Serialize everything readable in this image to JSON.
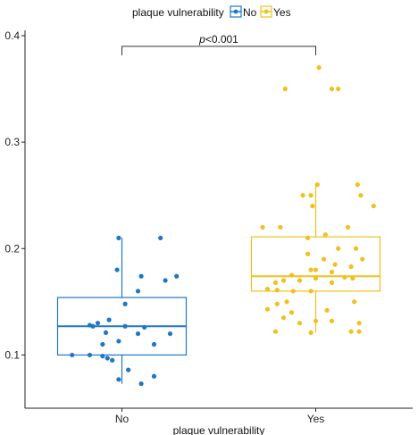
{
  "chart_data": {
    "type": "box-jitter",
    "legend": {
      "title": "plaque vulnerability",
      "position": "top",
      "entries": [
        {
          "label": "No",
          "color": "#1f77c4"
        },
        {
          "label": "Yes",
          "color": "#f2c01e"
        }
      ]
    },
    "xlabel": "plaque vulnerability",
    "ylabel": "",
    "categories": [
      "No",
      "Yes"
    ],
    "ylim": [
      0.05,
      0.405
    ],
    "yticks": [
      {
        "value": 0.1,
        "label": "0.1"
      },
      {
        "value": 0.2,
        "label": "0.2"
      },
      {
        "value": 0.3,
        "label": "0.3"
      },
      {
        "value": 0.4,
        "label": "0.4"
      }
    ],
    "annotation": {
      "italic": "p",
      "rest": "<0.001",
      "between": [
        "No",
        "Yes"
      ],
      "y": 0.39
    },
    "grid": false,
    "series": [
      {
        "name": "No",
        "color": "#1f77c4",
        "box": {
          "q1": 0.1,
          "median": 0.127,
          "q3": 0.154,
          "whisker_low": 0.073,
          "whisker_high": 0.21
        },
        "points": [
          {
            "jitter": -0.02,
            "y": 0.21
          },
          {
            "jitter": 0.24,
            "y": 0.21
          },
          {
            "jitter": -0.03,
            "y": 0.18
          },
          {
            "jitter": 0.12,
            "y": 0.174
          },
          {
            "jitter": 0.34,
            "y": 0.174
          },
          {
            "jitter": 0.27,
            "y": 0.17
          },
          {
            "jitter": 0.1,
            "y": 0.16
          },
          {
            "jitter": 0.02,
            "y": 0.148
          },
          {
            "jitter": -0.08,
            "y": 0.133
          },
          {
            "jitter": -0.15,
            "y": 0.13
          },
          {
            "jitter": -0.2,
            "y": 0.128
          },
          {
            "jitter": -0.18,
            "y": 0.127
          },
          {
            "jitter": 0.02,
            "y": 0.127
          },
          {
            "jitter": 0.14,
            "y": 0.126
          },
          {
            "jitter": -0.1,
            "y": 0.121
          },
          {
            "jitter": 0.1,
            "y": 0.12
          },
          {
            "jitter": 0.3,
            "y": 0.12
          },
          {
            "jitter": -0.02,
            "y": 0.113
          },
          {
            "jitter": -0.12,
            "y": 0.11
          },
          {
            "jitter": 0.2,
            "y": 0.11
          },
          {
            "jitter": -0.31,
            "y": 0.1
          },
          {
            "jitter": -0.2,
            "y": 0.1
          },
          {
            "jitter": -0.12,
            "y": 0.099
          },
          {
            "jitter": -0.09,
            "y": 0.097
          },
          {
            "jitter": -0.06,
            "y": 0.095
          },
          {
            "jitter": 0.04,
            "y": 0.086
          },
          {
            "jitter": 0.2,
            "y": 0.08
          },
          {
            "jitter": -0.02,
            "y": 0.077
          },
          {
            "jitter": 0.12,
            "y": 0.073
          }
        ]
      },
      {
        "name": "Yes",
        "color": "#f2c01e",
        "box": {
          "q1": 0.16,
          "median": 0.174,
          "q3": 0.211,
          "whisker_low": 0.121,
          "whisker_high": 0.26
        },
        "points": [
          {
            "jitter": 0.02,
            "y": 0.37
          },
          {
            "jitter": -0.19,
            "y": 0.35
          },
          {
            "jitter": 0.1,
            "y": 0.35
          },
          {
            "jitter": 0.14,
            "y": 0.35
          },
          {
            "jitter": 0.26,
            "y": 0.26
          },
          {
            "jitter": 0.01,
            "y": 0.26
          },
          {
            "jitter": -0.08,
            "y": 0.25
          },
          {
            "jitter": -0.03,
            "y": 0.25
          },
          {
            "jitter": 0.28,
            "y": 0.25
          },
          {
            "jitter": 0.36,
            "y": 0.24
          },
          {
            "jitter": -0.02,
            "y": 0.24
          },
          {
            "jitter": 0.2,
            "y": 0.22
          },
          {
            "jitter": -0.33,
            "y": 0.22
          },
          {
            "jitter": -0.22,
            "y": 0.22
          },
          {
            "jitter": 0.06,
            "y": 0.213
          },
          {
            "jitter": -0.05,
            "y": 0.21
          },
          {
            "jitter": 0.14,
            "y": 0.2
          },
          {
            "jitter": 0.25,
            "y": 0.2
          },
          {
            "jitter": -0.05,
            "y": 0.195
          },
          {
            "jitter": 0.05,
            "y": 0.19
          },
          {
            "jitter": 0.29,
            "y": 0.19
          },
          {
            "jitter": 0.12,
            "y": 0.185
          },
          {
            "jitter": 0.22,
            "y": 0.183
          },
          {
            "jitter": -0.03,
            "y": 0.18
          },
          {
            "jitter": 0.0,
            "y": 0.18
          },
          {
            "jitter": 0.1,
            "y": 0.178
          },
          {
            "jitter": -0.15,
            "y": 0.175
          },
          {
            "jitter": 0.18,
            "y": 0.173
          },
          {
            "jitter": -0.2,
            "y": 0.17
          },
          {
            "jitter": -0.1,
            "y": 0.17
          },
          {
            "jitter": 0.0,
            "y": 0.172
          },
          {
            "jitter": 0.23,
            "y": 0.172
          },
          {
            "jitter": -0.25,
            "y": 0.168
          },
          {
            "jitter": 0.1,
            "y": 0.168
          },
          {
            "jitter": -0.3,
            "y": 0.162
          },
          {
            "jitter": -0.24,
            "y": 0.161
          },
          {
            "jitter": -0.14,
            "y": 0.16
          },
          {
            "jitter": -0.03,
            "y": 0.16
          },
          {
            "jitter": -0.18,
            "y": 0.15
          },
          {
            "jitter": 0.24,
            "y": 0.15
          },
          {
            "jitter": -0.24,
            "y": 0.148
          },
          {
            "jitter": -0.3,
            "y": 0.143
          },
          {
            "jitter": 0.07,
            "y": 0.142
          },
          {
            "jitter": -0.15,
            "y": 0.14
          },
          {
            "jitter": -0.2,
            "y": 0.135
          },
          {
            "jitter": 0.0,
            "y": 0.132
          },
          {
            "jitter": 0.1,
            "y": 0.132
          },
          {
            "jitter": 0.27,
            "y": 0.13
          },
          {
            "jitter": -0.1,
            "y": 0.13
          },
          {
            "jitter": -0.25,
            "y": 0.122
          },
          {
            "jitter": 0.22,
            "y": 0.122
          },
          {
            "jitter": 0.27,
            "y": 0.122
          },
          {
            "jitter": -0.03,
            "y": 0.121
          }
        ]
      }
    ]
  }
}
